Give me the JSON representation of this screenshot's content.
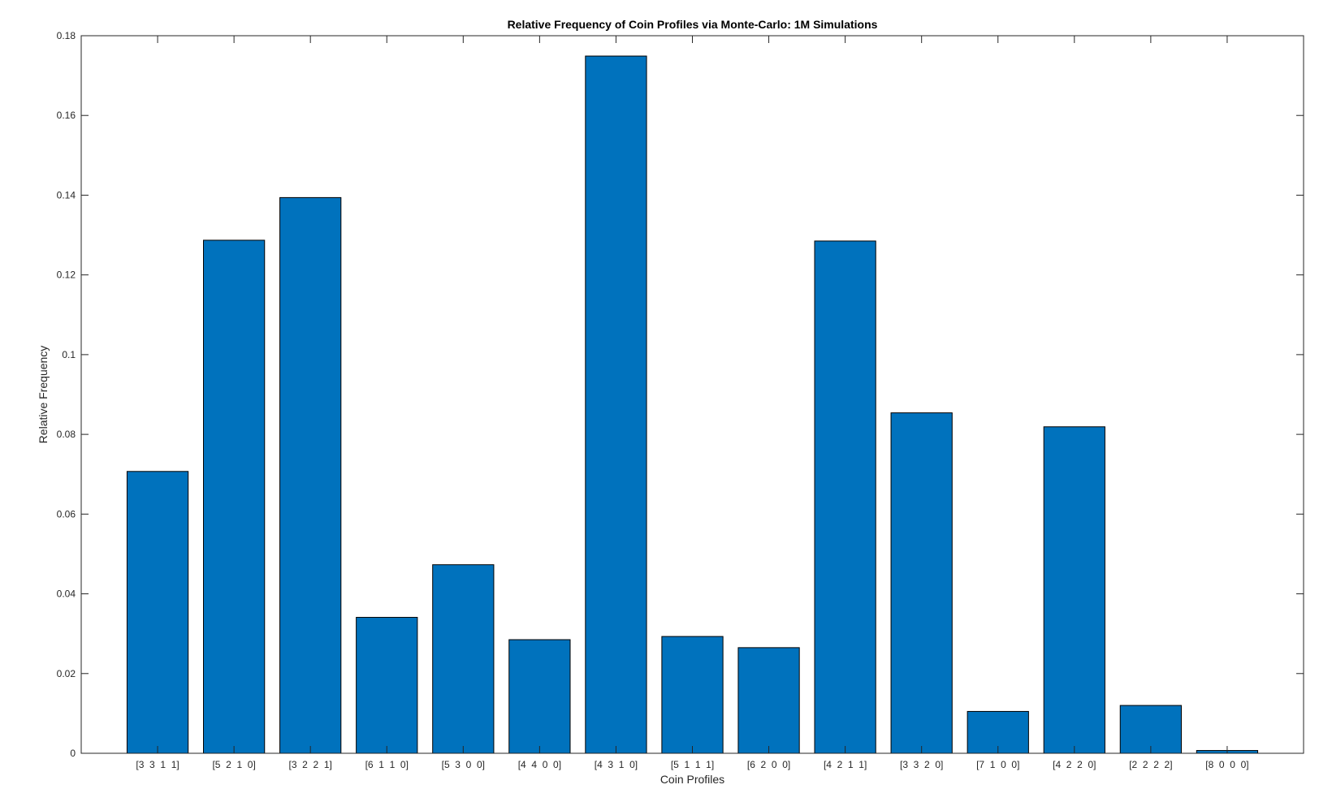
{
  "chart_data": {
    "type": "bar",
    "title": "Relative Frequency of Coin Profiles via Monte-Carlo: 1M Simulations",
    "xlabel": "Coin Profiles",
    "ylabel": "Relative Frequency",
    "categories": [
      "[3  3  1  1]",
      "[5  2  1  0]",
      "[3  2  2  1]",
      "[6  1  1  0]",
      "[5  3  0  0]",
      "[4  4  0  0]",
      "[4  3  1  0]",
      "[5  1  1  1]",
      "[6  2  0  0]",
      "[4  2  1  1]",
      "[3  3  2  0]",
      "[7  1  0  0]",
      "[4  2  2  0]",
      "[2  2  2  2]",
      "[8  0  0  0]"
    ],
    "values": [
      0.0707,
      0.1287,
      0.1394,
      0.0341,
      0.0473,
      0.0285,
      0.1749,
      0.0293,
      0.0265,
      0.1285,
      0.0854,
      0.0105,
      0.0819,
      0.012,
      0.0007
    ],
    "ylim": [
      0,
      0.18
    ],
    "yticks": [
      0,
      0.02,
      0.04,
      0.06,
      0.08,
      0.1,
      0.12,
      0.14,
      0.16,
      0.18
    ],
    "ytick_labels": [
      "0",
      "0.02",
      "0.04",
      "0.06",
      "0.08",
      "0.1",
      "0.12",
      "0.14",
      "0.16",
      "0.18"
    ],
    "grid": false,
    "colors": {
      "bar": "#0072BD",
      "edge": "#000000",
      "axis": "#262626"
    }
  }
}
